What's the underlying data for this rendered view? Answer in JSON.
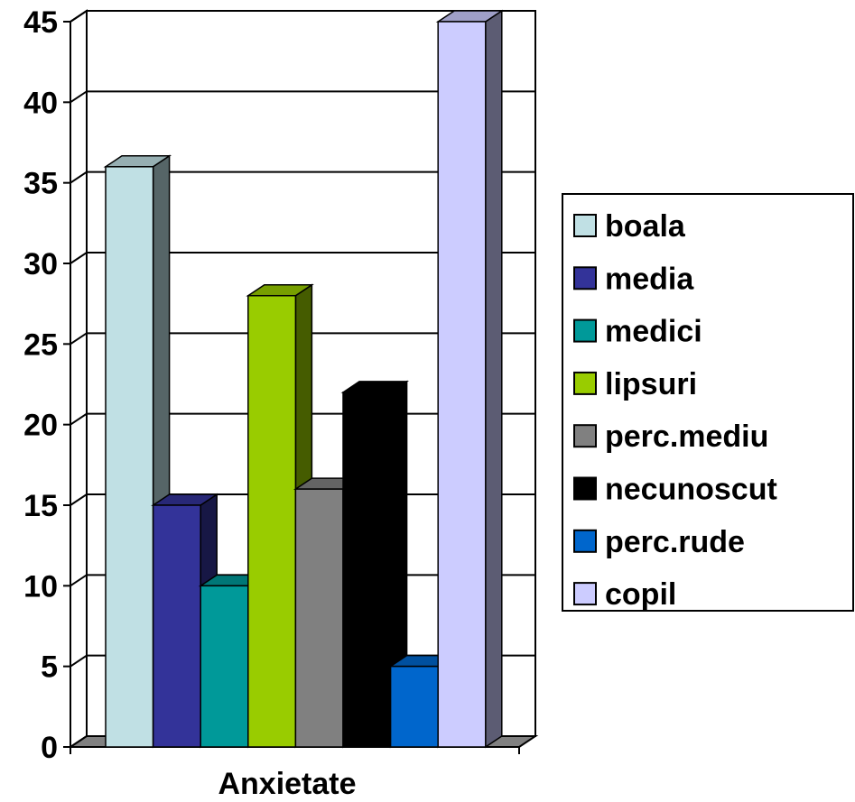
{
  "chart_data": {
    "type": "bar",
    "style": "3d-clustered-column",
    "categories": [
      "Anxietate"
    ],
    "series": [
      {
        "name": "boala",
        "values": [
          36
        ],
        "color": "#C0E0E4"
      },
      {
        "name": "media",
        "values": [
          15
        ],
        "color": "#333399"
      },
      {
        "name": "medici",
        "values": [
          10
        ],
        "color": "#009999"
      },
      {
        "name": "lipsuri",
        "values": [
          28
        ],
        "color": "#99CC00"
      },
      {
        "name": "perc.mediu",
        "values": [
          16
        ],
        "color": "#808080"
      },
      {
        "name": "necunoscut",
        "values": [
          22
        ],
        "color": "#000000"
      },
      {
        "name": "perc.rude",
        "values": [
          5
        ],
        "color": "#0066CC"
      },
      {
        "name": "copil",
        "values": [
          45
        ],
        "color": "#CCCCFF"
      }
    ],
    "ylim": [
      0,
      45
    ],
    "yticks": [
      "0",
      "5",
      "10",
      "15",
      "20",
      "25",
      "30",
      "35",
      "40",
      "45"
    ],
    "grid": true,
    "legend": "right"
  }
}
